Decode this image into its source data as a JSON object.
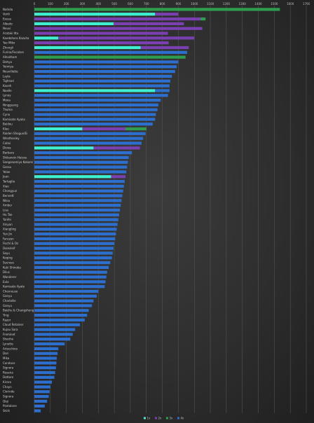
{
  "chart_data": {
    "type": "bar",
    "orientation": "horizontal",
    "stacked": true,
    "xlim": [
      0,
      1700
    ],
    "x_ticks": [
      "0",
      "100",
      "200",
      "300",
      "400",
      "500",
      "600",
      "700",
      "800",
      "900",
      "1000",
      "1100",
      "1200",
      "1300",
      "1400",
      "1500",
      "1600",
      "1700"
    ],
    "grid": true,
    "legend_position": "bottom-right",
    "colors": {
      "s1": "#3ef0d0",
      "s2": "#7a3fb0",
      "s3": "#2e9e4e",
      "s4": "#2c6fcf"
    },
    "series": [
      {
        "name": "1x",
        "color": "#3ef0d0"
      },
      {
        "name": "2x",
        "color": "#7a3fb0"
      },
      {
        "name": "3x",
        "color": "#2e9e4e"
      },
      {
        "name": "4x",
        "color": "#2c6fcf"
      }
    ],
    "bars": [
      {
        "label": "Nahida",
        "v": [
          0,
          0,
          1535,
          0
        ]
      },
      {
        "label": "Venti",
        "v": [
          755,
          145,
          0,
          0
        ]
      },
      {
        "label": "Eeesa",
        "v": [
          0,
          1040,
          30,
          0
        ]
      },
      {
        "label": "Albedo",
        "v": [
          495,
          440,
          0,
          0
        ]
      },
      {
        "label": "Neuvi",
        "v": [
          0,
          1050,
          0,
          0
        ]
      },
      {
        "label": "Arataki Itto",
        "v": [
          0,
          835,
          0,
          0
        ]
      },
      {
        "label": "Kaedehara Kazuha",
        "v": [
          150,
          850,
          0,
          0
        ]
      },
      {
        "label": "Yae Miko",
        "v": [
          0,
          840,
          0,
          0
        ]
      },
      {
        "label": "Zhongli",
        "v": [
          665,
          300,
          0,
          0
        ]
      },
      {
        "label": "Furina/Focalors",
        "v": [
          0,
          0,
          0,
          955
        ]
      },
      {
        "label": "Alhaitham",
        "v": [
          0,
          0,
          945,
          0
        ]
      },
      {
        "label": "Dehya",
        "v": [
          0,
          0,
          0,
          900
        ]
      },
      {
        "label": "Yoimiya",
        "v": [
          0,
          0,
          0,
          890
        ]
      },
      {
        "label": "Neuvillette",
        "v": [
          0,
          0,
          0,
          880
        ]
      },
      {
        "label": "Layla",
        "v": [
          0,
          0,
          0,
          860
        ]
      },
      {
        "label": "Tighnari",
        "v": [
          0,
          0,
          0,
          850
        ]
      },
      {
        "label": "Kaveh",
        "v": [
          0,
          0,
          0,
          845
        ]
      },
      {
        "label": "Noelle",
        "v": [
          755,
          0,
          0,
          90
        ]
      },
      {
        "label": "Lynoy",
        "v": [
          0,
          0,
          0,
          835
        ]
      },
      {
        "label": "Mona",
        "v": [
          0,
          0,
          0,
          790
        ]
      },
      {
        "label": "Ningguang",
        "v": [
          0,
          0,
          0,
          775
        ]
      },
      {
        "label": "Thoma",
        "v": [
          0,
          0,
          0,
          770
        ]
      },
      {
        "label": "Cyno",
        "v": [
          0,
          0,
          0,
          760
        ]
      },
      {
        "label": "Kamisato Ayaka",
        "v": [
          0,
          0,
          0,
          755
        ]
      },
      {
        "label": "Beidou",
        "v": [
          0,
          0,
          0,
          740
        ]
      },
      {
        "label": "Klee",
        "v": [
          300,
          270,
          130,
          0
        ]
      },
      {
        "label": "Raiden Shogun/Ei",
        "v": [
          0,
          0,
          0,
          695
        ]
      },
      {
        "label": "Wriothesley",
        "v": [
          0,
          0,
          0,
          680
        ]
      },
      {
        "label": "Collei",
        "v": [
          0,
          0,
          0,
          670
        ]
      },
      {
        "label": "Diona",
        "v": [
          370,
          290,
          0,
          0
        ]
      },
      {
        "label": "Barbara",
        "v": [
          0,
          0,
          0,
          610
        ]
      },
      {
        "label": "Shikanoin Heizou",
        "v": [
          0,
          0,
          0,
          590
        ]
      },
      {
        "label": "Sangonomiya Kokomi",
        "v": [
          0,
          0,
          0,
          585
        ]
      },
      {
        "label": "Gorou",
        "v": [
          0,
          0,
          0,
          580
        ]
      },
      {
        "label": "Yelan",
        "v": [
          0,
          0,
          0,
          575
        ]
      },
      {
        "label": "Jean",
        "v": [
          480,
          90,
          0,
          0
        ]
      },
      {
        "label": "Tartaglia",
        "v": [
          0,
          0,
          0,
          565
        ]
      },
      {
        "label": "Xiao",
        "v": [
          0,
          0,
          0,
          560
        ]
      },
      {
        "label": "Chongyun",
        "v": [
          0,
          0,
          0,
          555
        ]
      },
      {
        "label": "Bennett",
        "v": [
          0,
          0,
          0,
          550
        ]
      },
      {
        "label": "Nilou",
        "v": [
          0,
          0,
          0,
          545
        ]
      },
      {
        "label": "Amber",
        "v": [
          0,
          0,
          0,
          540
        ]
      },
      {
        "label": "Lisa",
        "v": [
          0,
          0,
          0,
          535
        ]
      },
      {
        "label": "Hu Tao",
        "v": [
          0,
          0,
          0,
          530
        ]
      },
      {
        "label": "Yanfei",
        "v": [
          0,
          0,
          0,
          525
        ]
      },
      {
        "label": "Xinyan",
        "v": [
          0,
          0,
          0,
          520
        ]
      },
      {
        "label": "Xiangling",
        "v": [
          0,
          0,
          0,
          515
        ]
      },
      {
        "label": "Yun Jin",
        "v": [
          0,
          0,
          0,
          510
        ]
      },
      {
        "label": "Faruzan",
        "v": [
          0,
          0,
          0,
          505
        ]
      },
      {
        "label": "Fischl & Oz",
        "v": [
          0,
          0,
          0,
          500
        ]
      },
      {
        "label": "Dainsleif",
        "v": [
          0,
          0,
          0,
          495
        ]
      },
      {
        "label": "Sayu",
        "v": [
          0,
          0,
          0,
          490
        ]
      },
      {
        "label": "Keqing",
        "v": [
          0,
          0,
          0,
          485
        ]
      },
      {
        "label": "Sucrose",
        "v": [
          0,
          0,
          0,
          475
        ]
      },
      {
        "label": "Kuki Shinobu",
        "v": [
          0,
          0,
          0,
          465
        ]
      },
      {
        "label": "Diluc",
        "v": [
          0,
          0,
          0,
          455
        ]
      },
      {
        "label": "Wanderer",
        "v": [
          0,
          0,
          0,
          450
        ]
      },
      {
        "label": "Eula",
        "v": [
          0,
          0,
          0,
          445
        ]
      },
      {
        "label": "Kamisato Ayato",
        "v": [
          0,
          0,
          0,
          440
        ]
      },
      {
        "label": "Chevreuse",
        "v": [
          0,
          0,
          0,
          400
        ]
      },
      {
        "label": "Ganyu",
        "v": [
          0,
          0,
          0,
          390
        ]
      },
      {
        "label": "Charlotte",
        "v": [
          0,
          0,
          0,
          370
        ]
      },
      {
        "label": "Ganyu",
        "v": [
          0,
          0,
          0,
          360
        ]
      },
      {
        "label": "Baizhu & Changsheng",
        "v": [
          0,
          0,
          0,
          340
        ]
      },
      {
        "label": "Ying",
        "v": [
          0,
          0,
          0,
          330
        ]
      },
      {
        "label": "Razor",
        "v": [
          0,
          0,
          0,
          315
        ]
      },
      {
        "label": "Cloud Retainer",
        "v": [
          0,
          0,
          0,
          285
        ]
      },
      {
        "label": "Kujou Sara",
        "v": [
          0,
          0,
          0,
          255
        ]
      },
      {
        "label": "Freminet",
        "v": [
          0,
          0,
          0,
          240
        ]
      },
      {
        "label": "Shenhe",
        "v": [
          0,
          0,
          0,
          225
        ]
      },
      {
        "label": "Lynette",
        "v": [
          0,
          0,
          0,
          190
        ]
      },
      {
        "label": "Arlecchino",
        "v": [
          0,
          0,
          0,
          150
        ]
      },
      {
        "label": "Dori",
        "v": [
          0,
          0,
          0,
          145
        ]
      },
      {
        "label": "Mika",
        "v": [
          0,
          0,
          0,
          140
        ]
      },
      {
        "label": "Candace",
        "v": [
          0,
          0,
          0,
          138
        ]
      },
      {
        "label": "Signora",
        "v": [
          0,
          0,
          0,
          135
        ]
      },
      {
        "label": "Rosaria",
        "v": [
          0,
          0,
          0,
          130
        ]
      },
      {
        "label": "Dottore",
        "v": [
          0,
          0,
          0,
          125
        ]
      },
      {
        "label": "Kirara",
        "v": [
          0,
          0,
          0,
          110
        ]
      },
      {
        "label": "Chayn",
        "v": [
          0,
          0,
          0,
          100
        ]
      },
      {
        "label": "Clorinde",
        "v": [
          0,
          0,
          0,
          95
        ]
      },
      {
        "label": "Signora",
        "v": [
          0,
          0,
          0,
          90
        ]
      },
      {
        "label": "Qiqi",
        "v": [
          0,
          0,
          0,
          80
        ]
      },
      {
        "label": "Pantalone",
        "v": [
          0,
          0,
          0,
          65
        ]
      },
      {
        "label": "Skirk",
        "v": [
          0,
          0,
          0,
          40
        ]
      }
    ]
  }
}
